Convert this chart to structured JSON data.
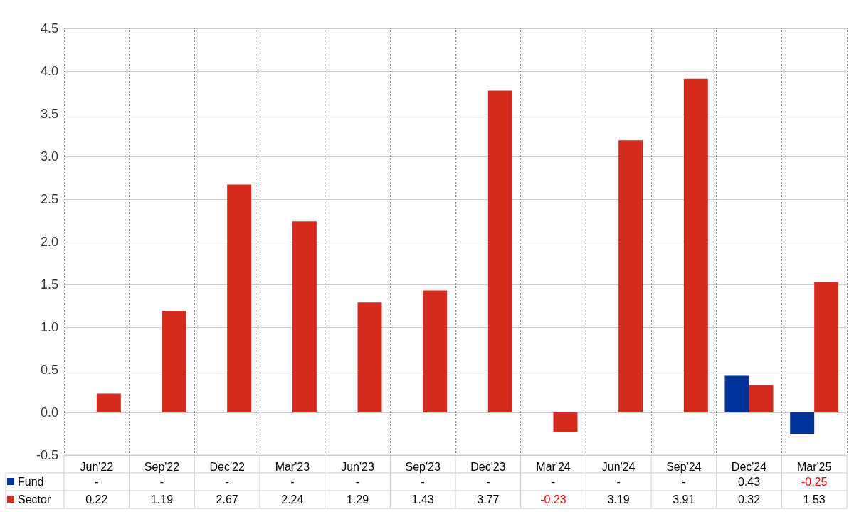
{
  "chart_data": {
    "type": "bar",
    "categories": [
      "Jun'22",
      "Sep'22",
      "Dec'22",
      "Mar'23",
      "Jun'23",
      "Sep'23",
      "Dec'23",
      "Mar'24",
      "Jun'24",
      "Sep'24",
      "Dec'24",
      "Mar'25"
    ],
    "series": [
      {
        "name": "Fund",
        "color": "#003299",
        "values": [
          null,
          null,
          null,
          null,
          null,
          null,
          null,
          null,
          null,
          null,
          0.43,
          -0.25
        ],
        "value_labels": [
          "-",
          "-",
          "-",
          "-",
          "-",
          "-",
          "-",
          "-",
          "-",
          "-",
          "0.43",
          "-0.25"
        ]
      },
      {
        "name": "Sector",
        "color": "#d52b1e",
        "values": [
          0.22,
          1.19,
          2.67,
          2.24,
          1.29,
          1.43,
          3.77,
          -0.23,
          3.19,
          3.91,
          0.32,
          1.53
        ],
        "value_labels": [
          "0.22",
          "1.19",
          "2.67",
          "2.24",
          "1.29",
          "1.43",
          "3.77",
          "-0.23",
          "3.19",
          "3.91",
          "0.32",
          "1.53"
        ]
      }
    ],
    "ylim": [
      -0.5,
      4.5
    ],
    "yticks": [
      {
        "value": -0.5,
        "label": "-0.5"
      },
      {
        "value": 0,
        "label": "0.0"
      },
      {
        "value": 0.5,
        "label": "0.5"
      },
      {
        "value": 1,
        "label": "1.0"
      },
      {
        "value": 1.5,
        "label": "1.5"
      },
      {
        "value": 2,
        "label": "2.0"
      },
      {
        "value": 2.5,
        "label": "2.5"
      },
      {
        "value": 3,
        "label": "3.0"
      },
      {
        "value": 3.5,
        "label": "3.5"
      },
      {
        "value": 4,
        "label": "4.0"
      },
      {
        "value": 4.5,
        "label": "4.5"
      }
    ],
    "grid": true,
    "legend": "bottom left"
  }
}
